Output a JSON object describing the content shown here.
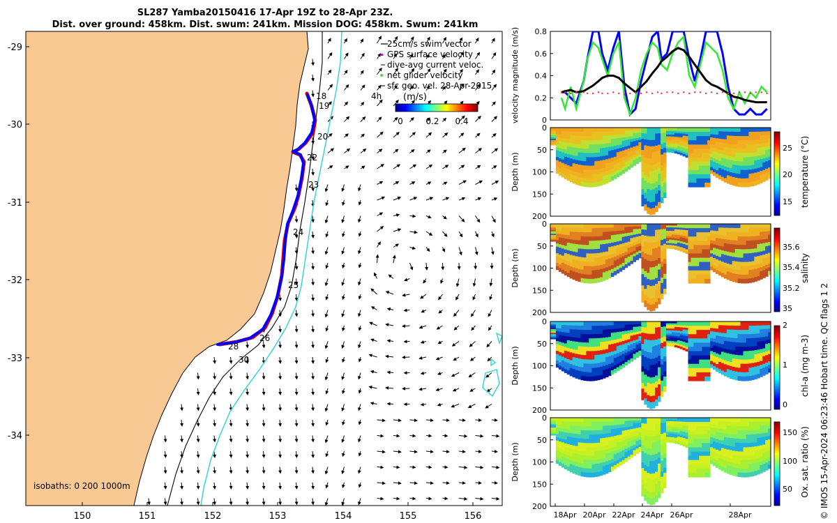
{
  "header": {
    "title_line1": "SL287 Yamba20150416 17-Apr 19Z to 28-Apr 23Z.",
    "title_line2": "Dist. over ground: 458km. Dist. swum: 241km. Mission DOG: 458km. Swum: 241km"
  },
  "map": {
    "x_ticks": [
      "150",
      "151",
      "152",
      "153",
      "154",
      "155",
      "156"
    ],
    "y_ticks": [
      "-29",
      "-30",
      "-31",
      "-32",
      "-33",
      "-34"
    ],
    "legend": [
      "25cm/s swim vector",
      "GPS surface velocity",
      "dive-avg current veloc.",
      "net glider velocity",
      "sfc geo. vel. 28-Apr-2015"
    ],
    "time_label": "4h",
    "colorbar_unit": "(m/s)",
    "colorbar_ticks": [
      "0",
      "0.2",
      "0.4"
    ],
    "isobaths_label": "isobaths: 0   200  1000m",
    "day_labels": [
      "18",
      "19",
      "20",
      "22",
      "23",
      "24",
      "25",
      "26",
      "28",
      "30"
    ],
    "colors": {
      "land": "#f9c994",
      "track_blue": "#0000ff",
      "track_red": "#d40000",
      "isobath_cyan": "#2ad4d4"
    }
  },
  "side_caption": {
    "credit": "© IMOS 15-Apr-2024 06:23:46 Hobart time. QC flags 1  2"
  },
  "chart_data": [
    {
      "type": "line",
      "ylabel": "velocity magnitude (m/s)",
      "ylim": [
        0,
        0.8
      ],
      "yticks": [
        "0",
        "0.2",
        "0.4",
        "0.6",
        "0.8"
      ],
      "x_days": [
        17.8,
        18.0,
        18.3,
        18.6,
        19.0,
        19.2,
        19.5,
        19.8,
        20.0,
        20.3,
        20.6,
        20.9,
        21.2,
        21.5,
        21.8,
        22.1,
        22.4,
        22.7,
        23.0,
        23.2,
        23.5,
        23.8,
        24.1,
        24.4,
        24.7,
        25.0,
        25.3,
        25.6,
        25.9,
        26.2,
        26.5,
        26.8,
        27.1,
        27.4,
        27.7,
        28.0,
        28.3,
        28.6,
        28.9
      ],
      "series": [
        {
          "color": "#0000ff",
          "values": [
            0.25,
            0.25,
            0.2,
            0.15,
            0.35,
            0.55,
            0.8,
            0.8,
            0.6,
            0.45,
            0.65,
            0.8,
            0.3,
            0.05,
            0.1,
            0.35,
            0.55,
            0.75,
            0.8,
            0.55,
            0.6,
            0.8,
            0.8,
            0.8,
            0.55,
            0.35,
            0.55,
            0.8,
            0.8,
            0.8,
            0.6,
            0.3,
            0.1,
            0.05,
            0.05,
            0.1,
            0.05,
            0.05,
            0.1
          ]
        },
        {
          "color": "#33e833",
          "values": [
            0.2,
            0.1,
            0.3,
            0.1,
            0.35,
            0.55,
            0.7,
            0.65,
            0.55,
            0.4,
            0.6,
            0.7,
            0.2,
            0.05,
            0.2,
            0.45,
            0.6,
            0.7,
            0.65,
            0.5,
            0.45,
            0.6,
            0.7,
            0.75,
            0.4,
            0.3,
            0.5,
            0.7,
            0.65,
            0.6,
            0.45,
            0.2,
            0.1,
            0.25,
            0.15,
            0.25,
            0.2,
            0.3,
            0.25
          ]
        },
        {
          "color": "#000000",
          "values": [
            0.25,
            0.26,
            0.27,
            0.25,
            0.26,
            0.28,
            0.31,
            0.35,
            0.38,
            0.4,
            0.4,
            0.38,
            0.33,
            0.29,
            0.25,
            0.3,
            0.35,
            0.42,
            0.48,
            0.53,
            0.57,
            0.62,
            0.65,
            0.63,
            0.57,
            0.5,
            0.43,
            0.36,
            0.32,
            0.3,
            0.27,
            0.24,
            0.21,
            0.2,
            0.18,
            0.17,
            0.16,
            0.16,
            0.16
          ]
        },
        {
          "color": "#ee3333",
          "values": [
            0.25,
            0.25,
            0.24,
            0.25,
            0.25,
            0.24,
            0.24,
            0.25,
            0.24,
            0.24,
            0.25,
            0.24,
            0.23,
            0.24,
            0.25,
            0.24,
            0.25,
            0.24,
            0.25,
            0.24,
            0.25,
            0.25,
            0.24,
            0.25,
            0.24,
            0.25,
            0.25,
            0.24,
            0.25,
            0.24,
            0.25,
            0.24,
            0.24,
            0.25,
            0.25,
            0.24,
            0.25,
            0.25,
            0.24
          ]
        }
      ]
    },
    {
      "type": "heatmap",
      "ylabel": "Depth (m)",
      "cbar_label": "temperature (°C)",
      "cbar_ticks": [
        "15",
        "20",
        "25"
      ],
      "yticks": [
        "0",
        "50",
        "100",
        "150",
        "200"
      ]
    },
    {
      "type": "heatmap",
      "ylabel": "Depth (m)",
      "cbar_label": "salinity",
      "cbar_ticks": [
        "35",
        "35.2",
        "35.4",
        "35.6"
      ],
      "yticks": [
        "0",
        "50",
        "100",
        "150",
        "200"
      ]
    },
    {
      "type": "heatmap",
      "ylabel": "Depth (m)",
      "cbar_label": "chl-a (mg m-3)",
      "cbar_ticks": [
        "0",
        "1",
        "2"
      ],
      "yticks": [
        "0",
        "50",
        "100",
        "150",
        "200"
      ]
    },
    {
      "type": "heatmap",
      "ylabel": "Depth (m)",
      "cbar_label": "Ox. sat. ratio (%)",
      "cbar_ticks": [
        "50",
        "100",
        "150"
      ],
      "yticks": [
        "0",
        "50",
        "100",
        "150",
        "200"
      ],
      "xticks": [
        "18Apr",
        "20Apr",
        "22Apr",
        "24Apr",
        "26Apr",
        "28Apr"
      ]
    }
  ]
}
